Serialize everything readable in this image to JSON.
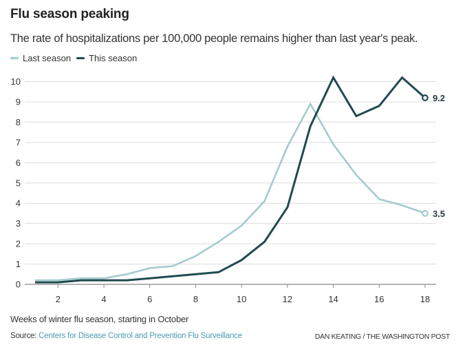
{
  "chart_data": {
    "type": "line",
    "title": "Flu season peaking",
    "subtitle": "The rate of hospitalizations per 100,000 people remains higher than last year's peak.",
    "xlabel": "Weeks of winter flu season, starting in October",
    "ylabel": "",
    "x": [
      1,
      2,
      3,
      4,
      5,
      6,
      7,
      8,
      9,
      10,
      11,
      12,
      13,
      14,
      15,
      16,
      17,
      18
    ],
    "xlim": [
      0.5,
      18.5
    ],
    "ylim": [
      0,
      10
    ],
    "xticks": [
      "2",
      "4",
      "6",
      "8",
      "10",
      "12",
      "14",
      "16",
      "18"
    ],
    "xtick_values": [
      2,
      4,
      6,
      8,
      10,
      12,
      14,
      16,
      18
    ],
    "yticks": [
      "0",
      "1",
      "2",
      "3",
      "4",
      "5",
      "6",
      "7",
      "8",
      "9",
      "10"
    ],
    "ytick_values": [
      0,
      1,
      2,
      3,
      4,
      5,
      6,
      7,
      8,
      9,
      10
    ],
    "grid": true,
    "legend_position": "top-left",
    "series": [
      {
        "name": "Last season",
        "color": "#a3cccf",
        "values": [
          0.2,
          0.2,
          0.3,
          0.3,
          0.5,
          0.8,
          0.9,
          1.4,
          2.1,
          2.9,
          4.1,
          6.8,
          8.9,
          6.9,
          5.4,
          4.2,
          3.9,
          3.5
        ],
        "end_label": "3.5"
      },
      {
        "name": "This season",
        "color": "#1f4a4f",
        "values": [
          0.1,
          0.1,
          0.2,
          0.2,
          0.2,
          0.3,
          0.4,
          0.5,
          0.6,
          1.2,
          2.1,
          3.8,
          7.8,
          10.2,
          8.3,
          8.8,
          10.2,
          9.2
        ],
        "end_label": "9.2"
      }
    ]
  },
  "footer": {
    "source_prefix": "Source: ",
    "source_link": "Centers for Disease Control and Prevention Flu Surveillance",
    "credit": "DAN KEATING / THE WASHINGTON POST"
  }
}
